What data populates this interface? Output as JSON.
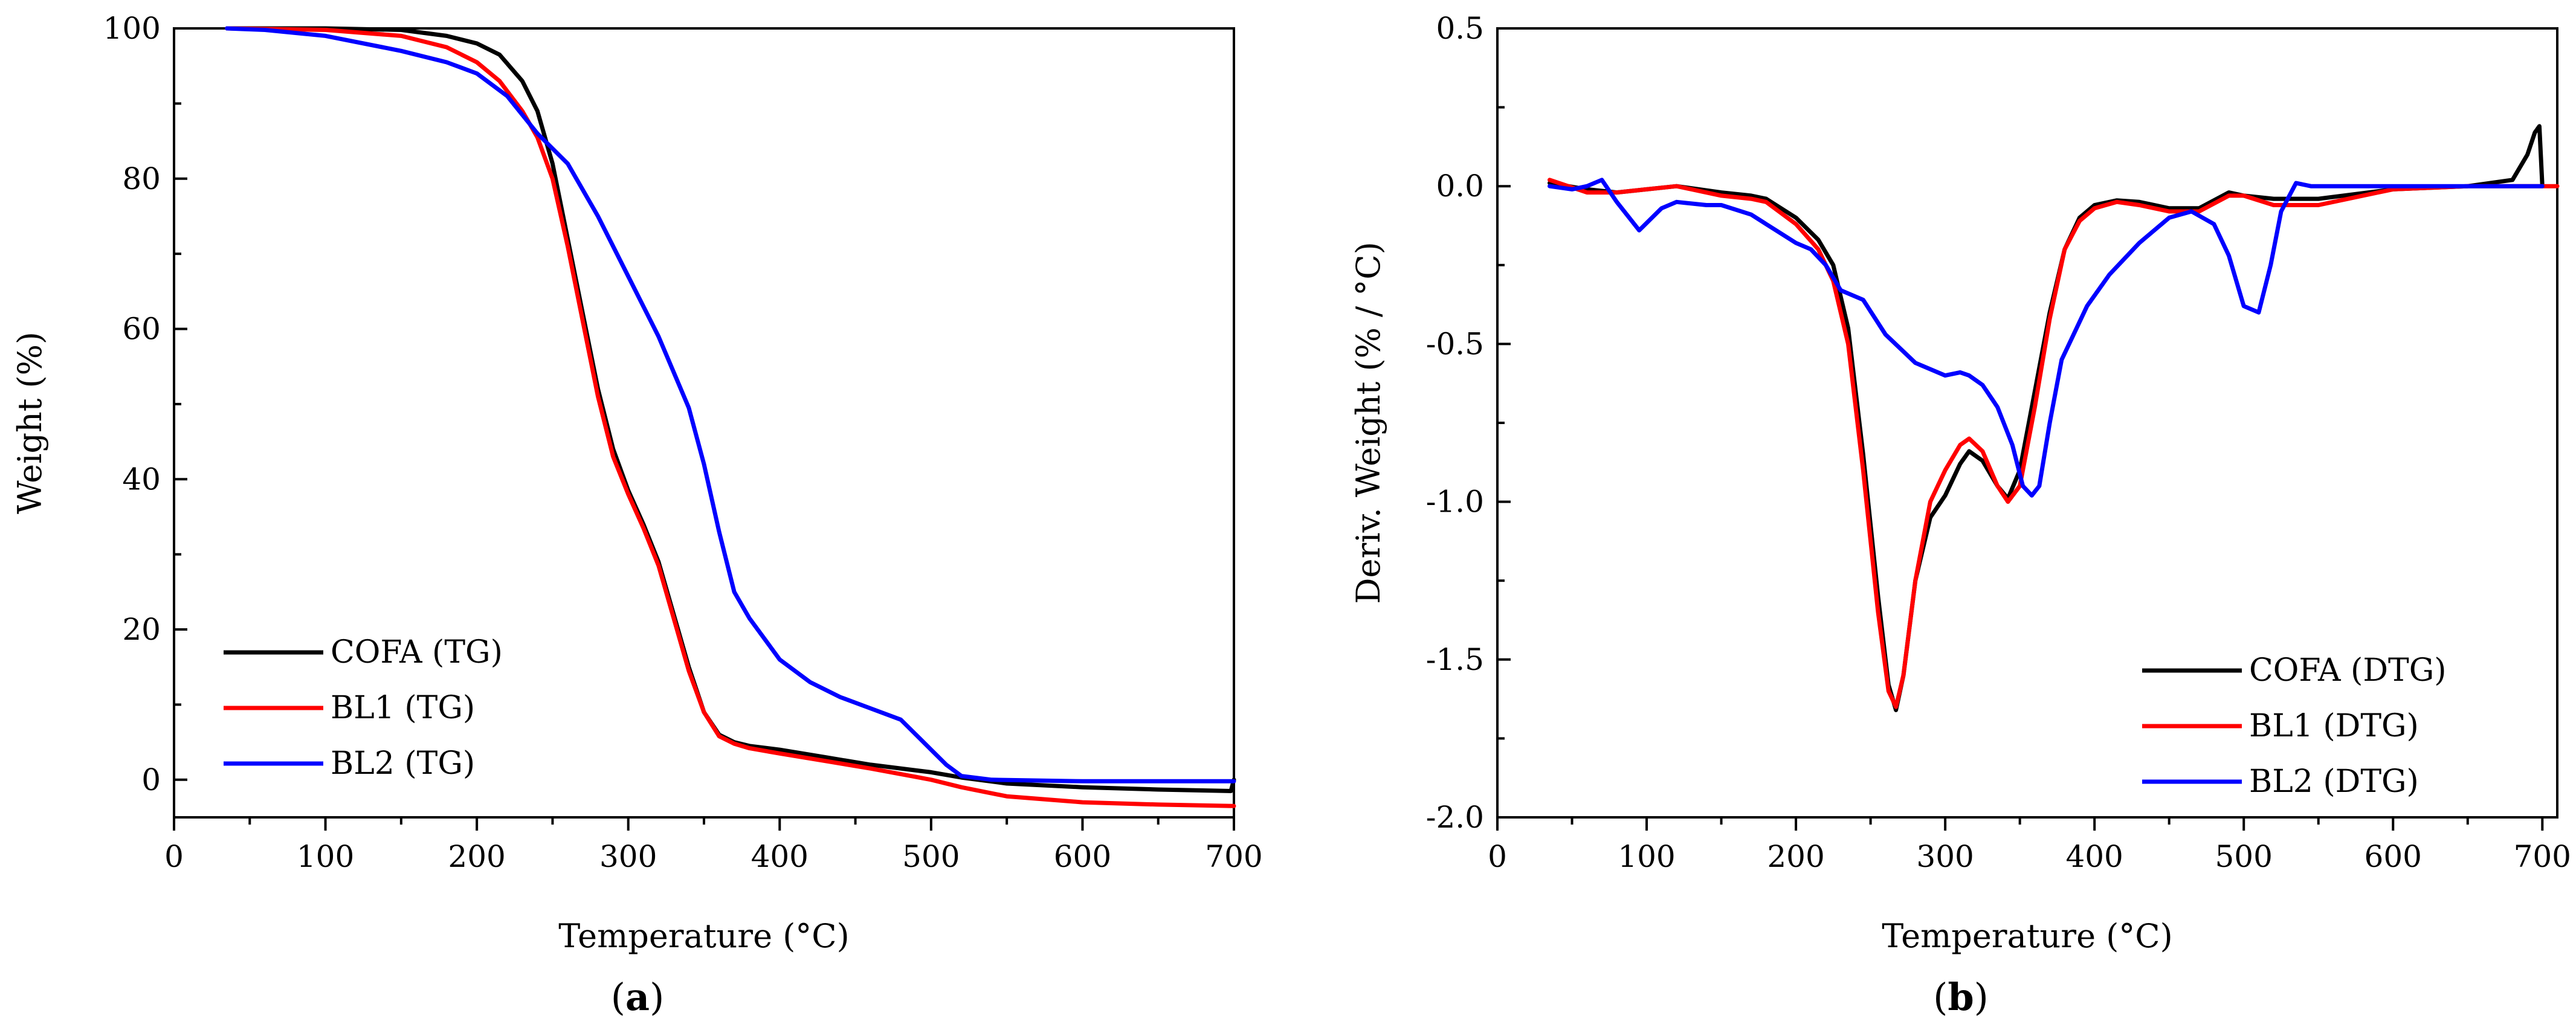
{
  "chart_data": [
    {
      "type": "line",
      "panel_label": "a",
      "title": "",
      "xlabel": "Temperature (°C)",
      "ylabel": "Weight (%)",
      "xlim": [
        0,
        700
      ],
      "ylim": [
        -5,
        100
      ],
      "xticks": [
        0,
        100,
        200,
        300,
        400,
        500,
        600,
        700
      ],
      "yticks": [
        0,
        20,
        40,
        60,
        80,
        100
      ],
      "legend_position": "bottom-left",
      "series": [
        {
          "name": "COFA (TG)",
          "color": "#000000",
          "x": [
            35,
            100,
            150,
            180,
            200,
            215,
            230,
            240,
            250,
            260,
            270,
            280,
            290,
            300,
            310,
            320,
            330,
            340,
            350,
            360,
            370,
            380,
            400,
            430,
            460,
            500,
            520,
            550,
            600,
            650,
            698,
            700
          ],
          "y": [
            100,
            100,
            99.8,
            99,
            98,
            96.5,
            93,
            89,
            82,
            72,
            62,
            52,
            44,
            38.5,
            34,
            29,
            22,
            15,
            9,
            6,
            5,
            4.5,
            4,
            3,
            2,
            1,
            0.3,
            -0.5,
            -1,
            -1.3,
            -1.5,
            0
          ]
        },
        {
          "name": "BL1 (TG)",
          "color": "#ff0000",
          "x": [
            35,
            100,
            150,
            180,
            200,
            215,
            230,
            240,
            250,
            260,
            270,
            280,
            290,
            300,
            310,
            320,
            330,
            340,
            350,
            360,
            370,
            380,
            400,
            430,
            460,
            500,
            520,
            550,
            600,
            650,
            700
          ],
          "y": [
            100,
            99.8,
            99,
            97.5,
            95.5,
            93,
            89,
            85.5,
            80,
            71,
            61,
            51,
            43,
            38,
            33.5,
            28.5,
            21.5,
            14.5,
            9,
            5.8,
            4.8,
            4.2,
            3.5,
            2.5,
            1.5,
            0,
            -1,
            -2.2,
            -3,
            -3.3,
            -3.5
          ]
        },
        {
          "name": "BL2 (TG)",
          "color": "#0000ff",
          "x": [
            35,
            60,
            100,
            150,
            180,
            200,
            220,
            240,
            260,
            280,
            300,
            320,
            340,
            350,
            360,
            370,
            380,
            400,
            420,
            440,
            460,
            480,
            490,
            500,
            510,
            520,
            540,
            600,
            700
          ],
          "y": [
            100,
            99.8,
            99,
            97,
            95.5,
            94,
            91,
            86,
            82,
            75,
            67,
            59,
            49.5,
            42,
            33,
            25,
            21.5,
            16,
            13,
            11,
            9.5,
            8,
            6,
            4,
            2,
            0.5,
            0,
            -0.2,
            -0.2
          ]
        }
      ]
    },
    {
      "type": "line",
      "panel_label": "b",
      "title": "",
      "xlabel": "Temperature (°C)",
      "ylabel": "Deriv. Weight (% / °C)",
      "xlim": [
        0,
        710
      ],
      "ylim": [
        -2.0,
        0.5
      ],
      "xticks": [
        0,
        100,
        200,
        300,
        400,
        500,
        600,
        700
      ],
      "yticks": [
        "0.5",
        "0.0",
        "-0.5",
        "-1.0",
        "-1.5",
        "-2.0"
      ],
      "legend_position": "bottom-right",
      "series": [
        {
          "name": "COFA (DTG)",
          "color": "#000000",
          "x": [
            35,
            60,
            80,
            100,
            120,
            150,
            170,
            180,
            200,
            215,
            225,
            235,
            245,
            255,
            262,
            267,
            272,
            280,
            290,
            300,
            310,
            316,
            325,
            335,
            342,
            350,
            360,
            370,
            380,
            390,
            400,
            415,
            430,
            450,
            470,
            490,
            500,
            520,
            550,
            600,
            650,
            680,
            690,
            695,
            698,
            700
          ],
          "y": [
            0.01,
            -0.01,
            -0.02,
            -0.01,
            0,
            -0.02,
            -0.03,
            -0.04,
            -0.1,
            -0.17,
            -0.25,
            -0.45,
            -0.85,
            -1.3,
            -1.58,
            -1.66,
            -1.55,
            -1.25,
            -1.05,
            -0.98,
            -0.88,
            -0.84,
            -0.87,
            -0.95,
            -0.99,
            -0.9,
            -0.65,
            -0.4,
            -0.2,
            -0.1,
            -0.06,
            -0.045,
            -0.05,
            -0.07,
            -0.07,
            -0.02,
            -0.03,
            -0.04,
            -0.04,
            -0.01,
            0,
            0.02,
            0.1,
            0.17,
            0.19,
            0
          ]
        },
        {
          "name": "BL1 (DTG)",
          "color": "#ff0000",
          "x": [
            35,
            60,
            80,
            100,
            120,
            150,
            170,
            180,
            200,
            215,
            225,
            235,
            245,
            255,
            262,
            267,
            272,
            280,
            290,
            300,
            310,
            316,
            325,
            335,
            342,
            350,
            360,
            370,
            380,
            390,
            400,
            415,
            430,
            450,
            470,
            490,
            500,
            520,
            550,
            600,
            650,
            700,
            710
          ],
          "y": [
            0.02,
            -0.02,
            -0.02,
            -0.01,
            0,
            -0.03,
            -0.04,
            -0.05,
            -0.12,
            -0.2,
            -0.3,
            -0.5,
            -0.9,
            -1.35,
            -1.6,
            -1.65,
            -1.55,
            -1.25,
            -1.0,
            -0.9,
            -0.82,
            -0.8,
            -0.84,
            -0.95,
            -1.0,
            -0.95,
            -0.7,
            -0.42,
            -0.2,
            -0.11,
            -0.07,
            -0.05,
            -0.06,
            -0.08,
            -0.08,
            -0.03,
            -0.03,
            -0.06,
            -0.06,
            -0.01,
            0,
            0,
            0
          ]
        },
        {
          "name": "BL2 (DTG)",
          "color": "#0000ff",
          "x": [
            35,
            50,
            60,
            70,
            80,
            95,
            110,
            120,
            140,
            150,
            170,
            180,
            200,
            210,
            220,
            230,
            245,
            260,
            280,
            300,
            310,
            316,
            325,
            335,
            345,
            352,
            358,
            363,
            370,
            378,
            385,
            395,
            410,
            430,
            450,
            465,
            480,
            490,
            500,
            510,
            518,
            525,
            535,
            545,
            560,
            600,
            700
          ],
          "y": [
            0,
            -0.01,
            0,
            0.02,
            -0.05,
            -0.14,
            -0.07,
            -0.05,
            -0.06,
            -0.06,
            -0.09,
            -0.12,
            -0.18,
            -0.2,
            -0.25,
            -0.33,
            -0.36,
            -0.47,
            -0.56,
            -0.6,
            -0.59,
            -0.6,
            -0.63,
            -0.7,
            -0.82,
            -0.95,
            -0.98,
            -0.95,
            -0.75,
            -0.55,
            -0.48,
            -0.38,
            -0.28,
            -0.18,
            -0.1,
            -0.08,
            -0.12,
            -0.22,
            -0.38,
            -0.4,
            -0.25,
            -0.08,
            0.01,
            0,
            0,
            0,
            0
          ]
        }
      ]
    }
  ]
}
